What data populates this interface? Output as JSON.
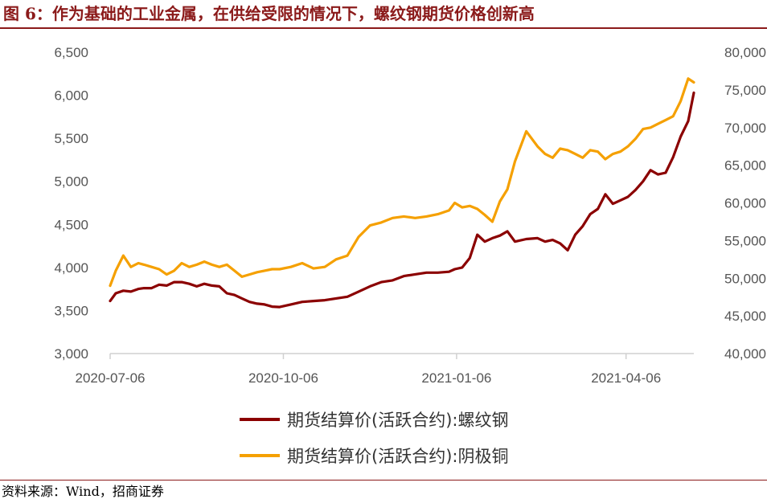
{
  "title": "图 6：作为基础的工业金属，在供给受限的情况下，螺纹钢期货价格创新高",
  "source": "资料来源：Wind，招商证券",
  "colors": {
    "rebar": "#8B0000",
    "copper": "#F5A000",
    "accent": "#8B1A1A"
  },
  "chart_data": {
    "type": "line",
    "title": "图 6：作为基础的工业金属，在供给受限的情况下，螺纹钢期货价格创新高",
    "x_ticks": [
      "2020-07-06",
      "2020-10-06",
      "2021-01-06",
      "2021-04-06"
    ],
    "x_range": [
      "2020-07-06",
      "2021-05-12"
    ],
    "y_left": {
      "range": [
        3000,
        6500
      ],
      "ticks": [
        "3,000",
        "3,500",
        "4,000",
        "4,500",
        "5,000",
        "5,500",
        "6,000",
        "6,500"
      ]
    },
    "y_right": {
      "range": [
        40000,
        80000
      ],
      "ticks": [
        "40,000",
        "45,000",
        "50,000",
        "55,000",
        "60,000",
        "65,000",
        "70,000",
        "75,000",
        "80,000"
      ]
    },
    "grid": false,
    "legend_position": "bottom",
    "series": [
      {
        "name": "期货结算价(活跃合约):螺纹钢",
        "axis": "left",
        "color": "#8B0000",
        "x": [
          "2020-07-06",
          "2020-07-09",
          "2020-07-13",
          "2020-07-17",
          "2020-07-21",
          "2020-07-24",
          "2020-07-28",
          "2020-08-01",
          "2020-08-05",
          "2020-08-09",
          "2020-08-13",
          "2020-08-17",
          "2020-08-21",
          "2020-08-25",
          "2020-08-29",
          "2020-09-02",
          "2020-09-06",
          "2020-09-10",
          "2020-09-14",
          "2020-09-18",
          "2020-09-22",
          "2020-09-26",
          "2020-09-30",
          "2020-10-04",
          "2020-10-10",
          "2020-10-16",
          "2020-10-22",
          "2020-10-28",
          "2020-11-03",
          "2020-11-09",
          "2020-11-15",
          "2020-11-21",
          "2020-11-27",
          "2020-12-03",
          "2020-12-09",
          "2020-12-15",
          "2020-12-21",
          "2020-12-27",
          "2021-01-02",
          "2021-01-05",
          "2021-01-09",
          "2021-01-13",
          "2021-01-17",
          "2021-01-21",
          "2021-01-25",
          "2021-01-29",
          "2021-02-02",
          "2021-02-06",
          "2021-02-12",
          "2021-02-18",
          "2021-02-22",
          "2021-02-26",
          "2021-03-02",
          "2021-03-06",
          "2021-03-10",
          "2021-03-14",
          "2021-03-18",
          "2021-03-22",
          "2021-03-26",
          "2021-03-30",
          "2021-04-03",
          "2021-04-07",
          "2021-04-11",
          "2021-04-15",
          "2021-04-19",
          "2021-04-23",
          "2021-04-27",
          "2021-05-01",
          "2021-05-05",
          "2021-05-09",
          "2021-05-12"
        ],
        "y": [
          3610,
          3700,
          3730,
          3720,
          3750,
          3760,
          3760,
          3800,
          3790,
          3830,
          3830,
          3810,
          3780,
          3810,
          3790,
          3780,
          3700,
          3680,
          3640,
          3600,
          3580,
          3570,
          3545,
          3540,
          3570,
          3600,
          3610,
          3620,
          3640,
          3660,
          3720,
          3780,
          3830,
          3850,
          3900,
          3920,
          3940,
          3940,
          3950,
          3980,
          4000,
          4110,
          4380,
          4300,
          4340,
          4370,
          4420,
          4300,
          4330,
          4340,
          4300,
          4320,
          4280,
          4200,
          4380,
          4480,
          4620,
          4680,
          4850,
          4740,
          4780,
          4820,
          4900,
          5000,
          5130,
          5080,
          5100,
          5280,
          5520,
          5700,
          6030
        ]
      },
      {
        "name": "期货结算价(活跃合约):阴极铜",
        "axis": "right",
        "color": "#F5A000",
        "x": [
          "2020-07-06",
          "2020-07-09",
          "2020-07-13",
          "2020-07-17",
          "2020-07-21",
          "2020-07-24",
          "2020-07-28",
          "2020-08-01",
          "2020-08-05",
          "2020-08-09",
          "2020-08-13",
          "2020-08-17",
          "2020-08-21",
          "2020-08-25",
          "2020-08-29",
          "2020-09-02",
          "2020-09-06",
          "2020-09-10",
          "2020-09-14",
          "2020-09-18",
          "2020-09-22",
          "2020-09-26",
          "2020-09-30",
          "2020-10-04",
          "2020-10-10",
          "2020-10-16",
          "2020-10-22",
          "2020-10-28",
          "2020-11-03",
          "2020-11-09",
          "2020-11-15",
          "2020-11-21",
          "2020-11-27",
          "2020-12-03",
          "2020-12-09",
          "2020-12-15",
          "2020-12-21",
          "2020-12-27",
          "2021-01-02",
          "2021-01-05",
          "2021-01-09",
          "2021-01-13",
          "2021-01-17",
          "2021-01-21",
          "2021-01-25",
          "2021-01-29",
          "2021-02-02",
          "2021-02-06",
          "2021-02-12",
          "2021-02-18",
          "2021-02-22",
          "2021-02-26",
          "2021-03-02",
          "2021-03-06",
          "2021-03-10",
          "2021-03-14",
          "2021-03-18",
          "2021-03-22",
          "2021-03-26",
          "2021-03-30",
          "2021-04-03",
          "2021-04-07",
          "2021-04-11",
          "2021-04-15",
          "2021-04-19",
          "2021-04-23",
          "2021-04-27",
          "2021-05-01",
          "2021-05-05",
          "2021-05-09",
          "2021-05-12"
        ],
        "y": [
          49000,
          51000,
          53000,
          51500,
          52000,
          51800,
          51500,
          51200,
          50500,
          51000,
          52000,
          51500,
          51800,
          52200,
          51800,
          51500,
          51800,
          51000,
          50200,
          50500,
          50800,
          51000,
          51200,
          51200,
          51500,
          52000,
          51300,
          51500,
          52500,
          53000,
          55500,
          57000,
          57400,
          58000,
          58200,
          58000,
          58200,
          58500,
          59000,
          60000,
          59400,
          59600,
          59200,
          58400,
          57500,
          60200,
          61800,
          65500,
          69500,
          67500,
          66500,
          66000,
          67200,
          67000,
          66500,
          66000,
          67000,
          66800,
          65800,
          66500,
          66800,
          67500,
          68500,
          69800,
          70000,
          70500,
          71000,
          71500,
          73500,
          76500,
          76000
        ]
      }
    ]
  }
}
